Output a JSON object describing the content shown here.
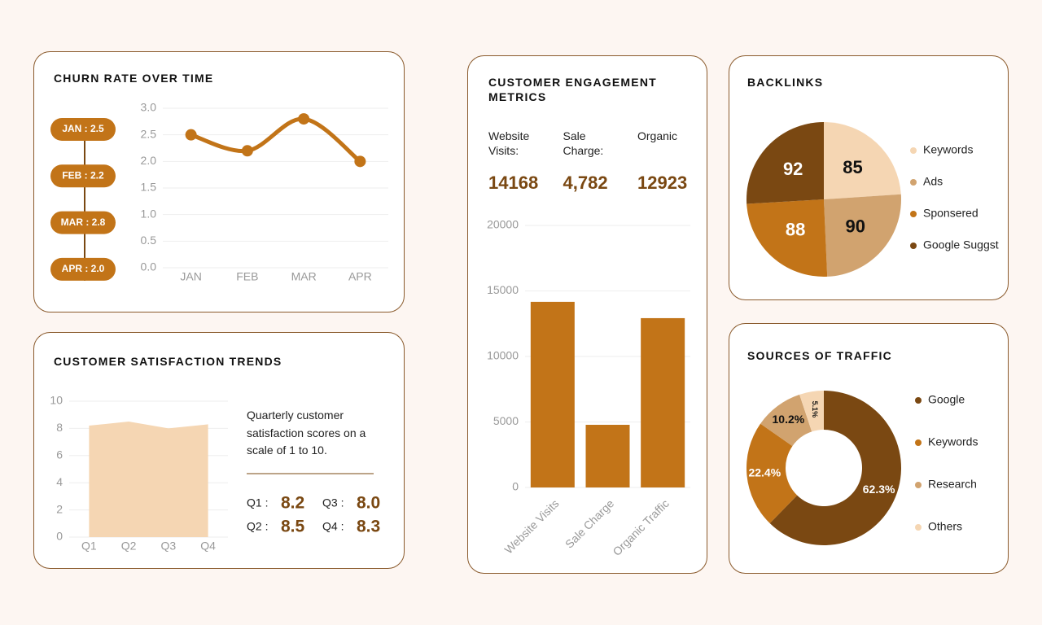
{
  "chart_data": [
    {
      "type": "line",
      "title": "CHURN RATE OVER TIME",
      "categories": [
        "JAN",
        "FEB",
        "MAR",
        "APR"
      ],
      "values": [
        2.5,
        2.2,
        2.8,
        2.0
      ],
      "value_labels": [
        "JAN : 2.5",
        "FEB : 2.2",
        "MAR : 2.8",
        "APR : 2.0"
      ],
      "color": "#c27418",
      "ylim": [
        0,
        3
      ],
      "yticks": [
        {
          "value": 0,
          "label": "0.0"
        },
        0.5,
        {
          "value": 1,
          "label": "1.0"
        },
        1.5,
        {
          "value": 2,
          "label": "2.0"
        },
        2.5,
        {
          "value": 3,
          "label": "3.0"
        }
      ],
      "grid": true
    },
    {
      "type": "area",
      "title": "CUSTOMER SATISFACTION TRENDS",
      "categories": [
        "Q1",
        "Q2",
        "Q3",
        "Q4"
      ],
      "values": [
        8.2,
        8.5,
        8.0,
        8.3
      ],
      "value_labels": [
        "8.2",
        "8.5",
        "8.0",
        "8.3"
      ],
      "summary_labels": [
        "Q1 :",
        "Q2 :",
        "Q3 :",
        "Q4 :"
      ],
      "note": "Quarterly customer satisfaction scores on a scale of 1 to 10.",
      "color": "#f5d6b3",
      "ylim": [
        0,
        10
      ],
      "yticks": [
        0,
        2,
        4,
        6,
        8,
        10
      ],
      "grid": true
    },
    {
      "type": "bar",
      "title": "CUSTOMER ENGAGEMENT METRICS",
      "categories": [
        "Website Visits",
        "Sale Charge",
        "Organic Traffic"
      ],
      "values": [
        14168,
        4782,
        12923
      ],
      "kpi_labels": [
        "Website Visits:",
        "Sale Charge:",
        "Organic"
      ],
      "value_labels": [
        "14168",
        "4,782",
        "12923"
      ],
      "color": "#c27418",
      "ylim": [
        0,
        20000
      ],
      "yticks": [
        0,
        5000,
        10000,
        15000,
        20000
      ],
      "grid": true
    },
    {
      "type": "pie",
      "title": "BACKLINKS",
      "categories": [
        "Keywords",
        "Ads",
        "Sponsered",
        "Google Suggst"
      ],
      "values": [
        85,
        90,
        88,
        92
      ],
      "colors": [
        "#f5d6b3",
        "#d1a36f",
        "#c27418",
        "#7a4812"
      ]
    },
    {
      "type": "donut",
      "title": "SOURCES OF TRAFFIC",
      "categories": [
        "Google",
        "Keywords",
        "Research",
        "Others"
      ],
      "values": [
        62.3,
        22.4,
        10.2,
        5.1
      ],
      "value_labels": [
        "62.3%",
        "22.4%",
        "10.2%",
        "5.1%"
      ],
      "colors": [
        "#7a4812",
        "#c27418",
        "#d1a36f",
        "#f5d6b3"
      ]
    }
  ]
}
